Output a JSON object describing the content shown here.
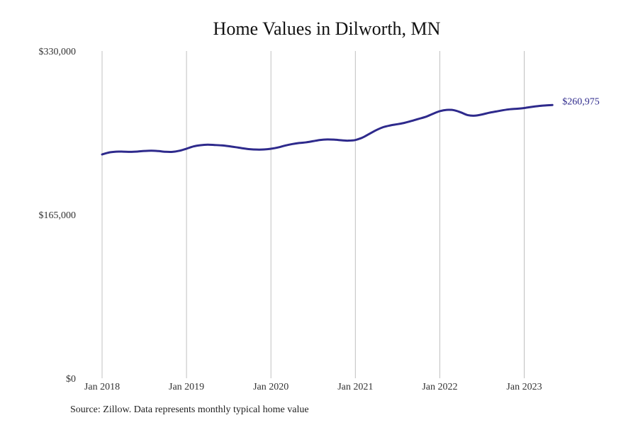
{
  "chart_data": {
    "type": "line",
    "title": "Home Values in Dilworth, MN",
    "source": "Source: Zillow. Data represents monthly typical home value",
    "xlabel": "",
    "ylabel": "",
    "xlim": [
      "2018-01",
      "2023-05"
    ],
    "ylim": [
      0,
      330000
    ],
    "grid": "vertical lines at each January",
    "legend": "none",
    "x_ticks": [
      "Jan 2018",
      "Jan 2019",
      "Jan 2020",
      "Jan 2021",
      "Jan 2022",
      "Jan 2023"
    ],
    "y_ticks": [
      "$0",
      "$165,000",
      "$330,000"
    ],
    "line_color": "#2e2a8c",
    "grid_color": "#c0c0c0",
    "end_label": "$260,975",
    "series": [
      {
        "x": [
          "2018-01",
          "2018-02",
          "2018-03",
          "2018-04",
          "2018-05",
          "2018-06",
          "2018-07",
          "2018-08",
          "2018-09",
          "2018-10",
          "2018-11",
          "2018-12",
          "2019-01",
          "2019-02",
          "2019-03",
          "2019-04",
          "2019-05",
          "2019-06",
          "2019-07",
          "2019-08",
          "2019-09",
          "2019-10",
          "2019-11",
          "2019-12",
          "2020-01",
          "2020-02",
          "2020-03",
          "2020-04",
          "2020-05",
          "2020-06",
          "2020-07",
          "2020-08",
          "2020-09",
          "2020-10",
          "2020-11",
          "2020-12",
          "2021-01",
          "2021-02",
          "2021-03",
          "2021-04",
          "2021-05",
          "2021-06",
          "2021-07",
          "2021-08",
          "2021-09",
          "2021-10",
          "2021-11",
          "2021-12",
          "2022-01",
          "2022-02",
          "2022-03",
          "2022-04",
          "2022-05",
          "2022-06",
          "2022-07",
          "2022-08",
          "2022-09",
          "2022-10",
          "2022-11",
          "2022-12",
          "2023-01",
          "2023-02",
          "2023-03",
          "2023-04",
          "2023-05"
        ],
        "values": [
          225700,
          227700,
          228500,
          228500,
          228300,
          228600,
          229200,
          229500,
          229100,
          228400,
          228300,
          229400,
          231500,
          233800,
          235000,
          235500,
          235200,
          234800,
          234000,
          233000,
          231900,
          231000,
          230600,
          230700,
          231400,
          232700,
          234600,
          236100,
          237200,
          237900,
          239100,
          240300,
          240800,
          240600,
          240000,
          239600,
          240200,
          242700,
          246500,
          250300,
          253300,
          255000,
          256200,
          257600,
          259500,
          261600,
          263600,
          266600,
          269300,
          270600,
          270300,
          268100,
          265300,
          264800,
          266000,
          267700,
          269000,
          270300,
          271300,
          271800,
          272500,
          273600,
          274500,
          275100,
          260975
        ]
      }
    ]
  }
}
